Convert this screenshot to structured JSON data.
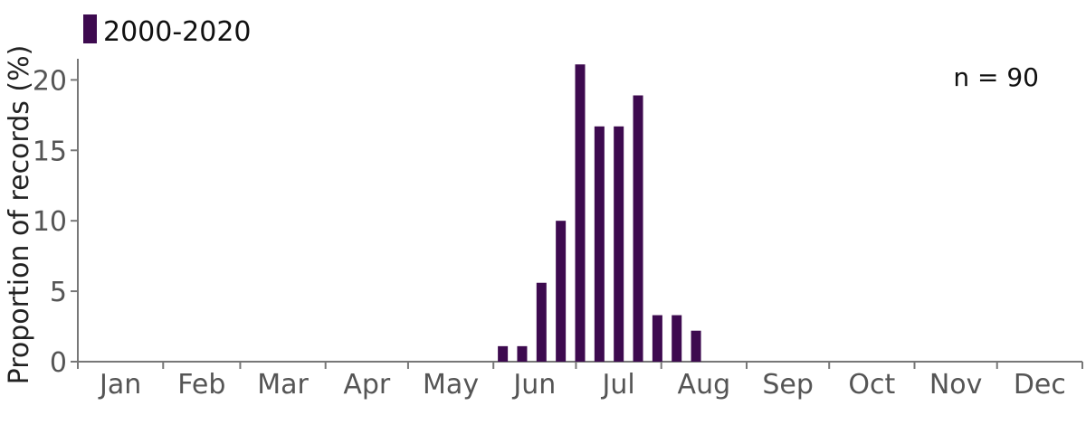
{
  "chart_data": {
    "type": "bar",
    "ylabel": "Proportion of records (%)",
    "ylim": [
      0,
      21.5
    ],
    "yticks": [
      0,
      5,
      10,
      15,
      20
    ],
    "months": [
      "Jan",
      "Feb",
      "Mar",
      "Apr",
      "May",
      "Jun",
      "Jul",
      "Aug",
      "Sep",
      "Oct",
      "Nov",
      "Dec"
    ],
    "series": [
      {
        "name": "2000-2020",
        "color": "#3d0a4f",
        "points": [
          {
            "week": 22,
            "value": 1.1
          },
          {
            "week": 23,
            "value": 1.1
          },
          {
            "week": 24,
            "value": 5.6
          },
          {
            "week": 25,
            "value": 10.0
          },
          {
            "week": 26,
            "value": 21.1
          },
          {
            "week": 27,
            "value": 16.7
          },
          {
            "week": 28,
            "value": 16.7
          },
          {
            "week": 29,
            "value": 18.9
          },
          {
            "week": 30,
            "value": 3.3
          },
          {
            "week": 31,
            "value": 3.3
          },
          {
            "week": 32,
            "value": 2.2
          }
        ]
      }
    ],
    "annotation": "n = 90",
    "legend_position": "top-left",
    "grid": false
  }
}
